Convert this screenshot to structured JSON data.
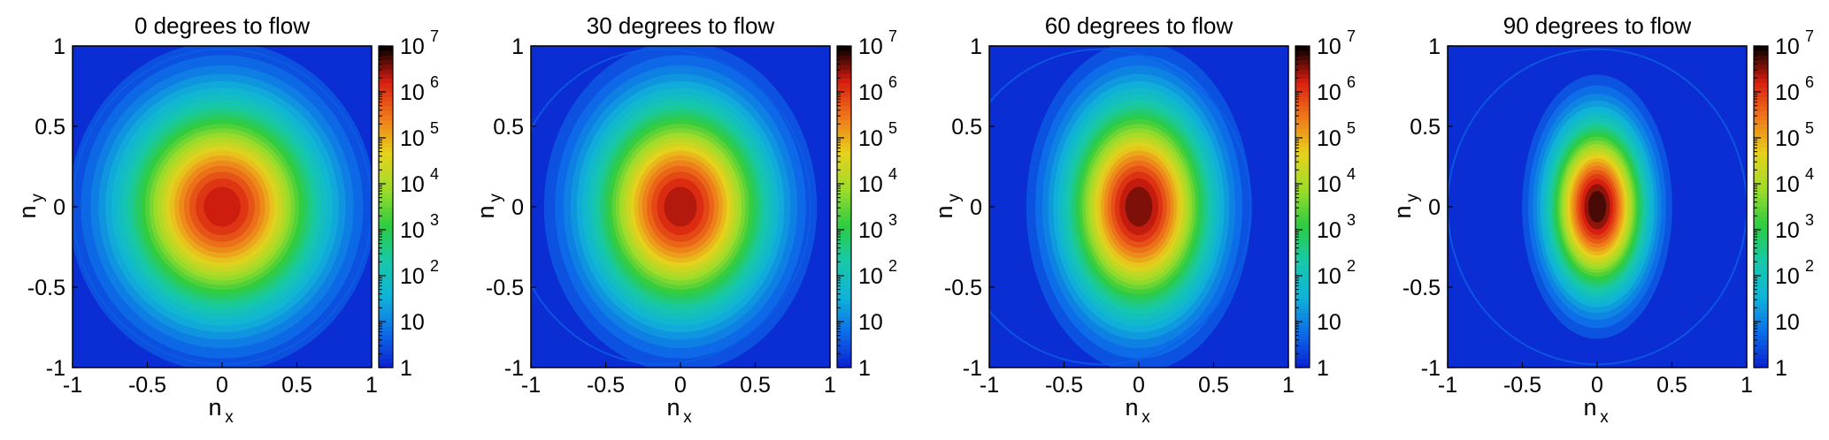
{
  "chart_data": [
    {
      "type": "heatmap",
      "title": "0 degrees to flow",
      "xlabel": "n",
      "xlabel_subscript": "x",
      "ylabel": "n",
      "ylabel_subscript": "y",
      "xlim": [
        -1,
        1
      ],
      "ylim": [
        -1,
        1
      ],
      "xticks": [
        "-1",
        "-0.5",
        "0",
        "0.5",
        "1"
      ],
      "yticks": [
        "1",
        "0.5",
        "0",
        "-0.5",
        "-1"
      ],
      "log_scale_colorbar": true,
      "colorbar_range": [
        1,
        10000000
      ],
      "colorbar_ticks": [
        {
          "base": "10",
          "exp": "7"
        },
        {
          "base": "10",
          "exp": "6"
        },
        {
          "base": "10",
          "exp": "5"
        },
        {
          "base": "10",
          "exp": "4"
        },
        {
          "base": "10",
          "exp": "3"
        },
        {
          "base": "10",
          "exp": "2"
        },
        {
          "base": "10",
          "exp": ""
        },
        {
          "base": "1",
          "exp": ""
        }
      ],
      "peak_log10": 6.5,
      "blob_sigma_x": 0.45,
      "blob_sigma_y": 0.45,
      "domain_edge_offset": 0.0
    },
    {
      "type": "heatmap",
      "title": "30 degrees to flow",
      "xlabel": "n",
      "xlabel_subscript": "x",
      "ylabel": "n",
      "ylabel_subscript": "y",
      "xlim": [
        -1,
        1
      ],
      "ylim": [
        -1,
        1
      ],
      "xticks": [
        "-1",
        "-0.5",
        "0",
        "0.5",
        "1"
      ],
      "yticks": [
        "1",
        "0.5",
        "0",
        "-0.5",
        "-1"
      ],
      "log_scale_colorbar": true,
      "colorbar_range": [
        1,
        10000000
      ],
      "colorbar_ticks": [
        {
          "base": "10",
          "exp": "7"
        },
        {
          "base": "10",
          "exp": "6"
        },
        {
          "base": "10",
          "exp": "5"
        },
        {
          "base": "10",
          "exp": "4"
        },
        {
          "base": "10",
          "exp": "3"
        },
        {
          "base": "10",
          "exp": "2"
        },
        {
          "base": "10",
          "exp": ""
        },
        {
          "base": "1",
          "exp": ""
        }
      ],
      "peak_log10": 6.6,
      "blob_sigma_x": 0.4,
      "blob_sigma_y": 0.45,
      "domain_edge_offset": 0.13
    },
    {
      "type": "heatmap",
      "title": "60 degrees to flow",
      "xlabel": "n",
      "xlabel_subscript": "x",
      "ylabel": "n",
      "ylabel_subscript": "y",
      "xlim": [
        -1,
        1
      ],
      "ylim": [
        -1,
        1
      ],
      "xticks": [
        "-1",
        "-0.5",
        "0",
        "0.5",
        "1"
      ],
      "yticks": [
        "1",
        "0.5",
        "0",
        "-0.5",
        "-1"
      ],
      "log_scale_colorbar": true,
      "colorbar_range": [
        1,
        10000000
      ],
      "colorbar_ticks": [
        {
          "base": "10",
          "exp": "7"
        },
        {
          "base": "10",
          "exp": "6"
        },
        {
          "base": "10",
          "exp": "5"
        },
        {
          "base": "10",
          "exp": "4"
        },
        {
          "base": "10",
          "exp": "3"
        },
        {
          "base": "10",
          "exp": "2"
        },
        {
          "base": "10",
          "exp": ""
        },
        {
          "base": "1",
          "exp": ""
        }
      ],
      "peak_log10": 6.8,
      "blob_sigma_x": 0.33,
      "blob_sigma_y": 0.45,
      "domain_edge_offset": 0.25
    },
    {
      "type": "heatmap",
      "title": "90 degrees to flow",
      "xlabel": "n",
      "xlabel_subscript": "x",
      "ylabel": "n",
      "ylabel_subscript": "y",
      "xlim": [
        -1,
        1
      ],
      "ylim": [
        -1,
        1
      ],
      "xticks": [
        "-1",
        "-0.5",
        "0",
        "0.5",
        "1"
      ],
      "yticks": [
        "1",
        "0.5",
        "0",
        "-0.5",
        "-1"
      ],
      "log_scale_colorbar": true,
      "colorbar_range": [
        1,
        10000000
      ],
      "colorbar_ticks": [
        {
          "base": "10",
          "exp": "7"
        },
        {
          "base": "10",
          "exp": "6"
        },
        {
          "base": "10",
          "exp": "5"
        },
        {
          "base": "10",
          "exp": "4"
        },
        {
          "base": "10",
          "exp": "3"
        },
        {
          "base": "10",
          "exp": "2"
        },
        {
          "base": "10",
          "exp": ""
        },
        {
          "base": "1",
          "exp": ""
        }
      ],
      "peak_log10": 7.0,
      "blob_sigma_x": 0.22,
      "blob_sigma_y": 0.36,
      "domain_edge_offset": 0.0
    }
  ],
  "colors": {
    "colormap": [
      "#0a1fd0",
      "#0d6ee8",
      "#10b3d8",
      "#17c9a8",
      "#2ecc40",
      "#9edc2a",
      "#e6d21c",
      "#ef7a1a",
      "#d81e10",
      "#000000"
    ],
    "background": "#ffffff",
    "axis": "#000000"
  }
}
